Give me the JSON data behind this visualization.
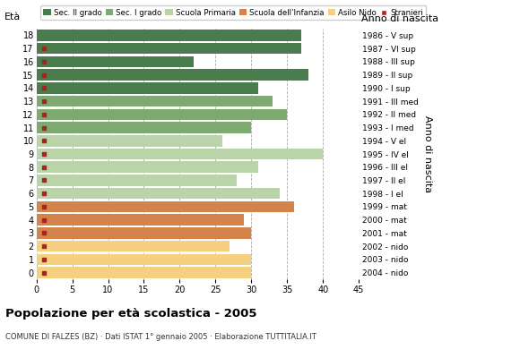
{
  "ages": [
    18,
    17,
    16,
    15,
    14,
    13,
    12,
    11,
    10,
    9,
    8,
    7,
    6,
    5,
    4,
    3,
    2,
    1,
    0
  ],
  "values": [
    37,
    37,
    22,
    38,
    31,
    33,
    35,
    30,
    26,
    40,
    31,
    28,
    34,
    36,
    29,
    30,
    27,
    30,
    30
  ],
  "stranieri": [
    0,
    1,
    1,
    1,
    1,
    1,
    1,
    2,
    1,
    1,
    1,
    1,
    2,
    1,
    1,
    2,
    2,
    1,
    2
  ],
  "categories": {
    "sec2": [
      14,
      15,
      16,
      17,
      18
    ],
    "sec1": [
      11,
      12,
      13
    ],
    "primaria": [
      6,
      7,
      8,
      9,
      10
    ],
    "infanzia": [
      3,
      4,
      5
    ],
    "nido": [
      0,
      1,
      2
    ]
  },
  "colors": {
    "sec2": "#4a7c4e",
    "sec1": "#7daa70",
    "primaria": "#b8d4a8",
    "infanzia": "#d4834a",
    "nido": "#f5d080"
  },
  "anno_nascita": {
    "18": "1986 - V sup",
    "17": "1987 - VI sup",
    "16": "1988 - III sup",
    "15": "1989 - II sup",
    "14": "1990 - I sup",
    "13": "1991 - III med",
    "12": "1992 - II med",
    "11": "1993 - I med",
    "10": "1994 - V el",
    "9": "1995 - IV el",
    "8": "1996 - III el",
    "7": "1997 - II el",
    "6": "1998 - I el",
    "5": "1999 - mat",
    "4": "2000 - mat",
    "3": "2001 - mat",
    "2": "2002 - nido",
    "1": "2003 - nido",
    "0": "2004 - nido"
  },
  "legend_labels": [
    "Sec. II grado",
    "Sec. I grado",
    "Scuola Primaria",
    "Scuola dell'Infanzia",
    "Asilo Nido",
    "Stranieri"
  ],
  "legend_colors": [
    "#4a7c4e",
    "#7daa70",
    "#b8d4a8",
    "#d4834a",
    "#f5d080",
    "#aa2222"
  ],
  "title": "Popolazione per età scolastica - 2005",
  "subtitle": "COMUNE DI FALZES (BZ) · Dati ISTAT 1° gennaio 2005 · Elaborazione TUTTITALIA.IT",
  "ylabel_left": "Età",
  "ylabel_right": "Anno di nascita",
  "xlim": [
    0,
    45
  ],
  "xticks": [
    0,
    5,
    10,
    15,
    20,
    25,
    30,
    35,
    40,
    45
  ],
  "bar_height": 0.85
}
